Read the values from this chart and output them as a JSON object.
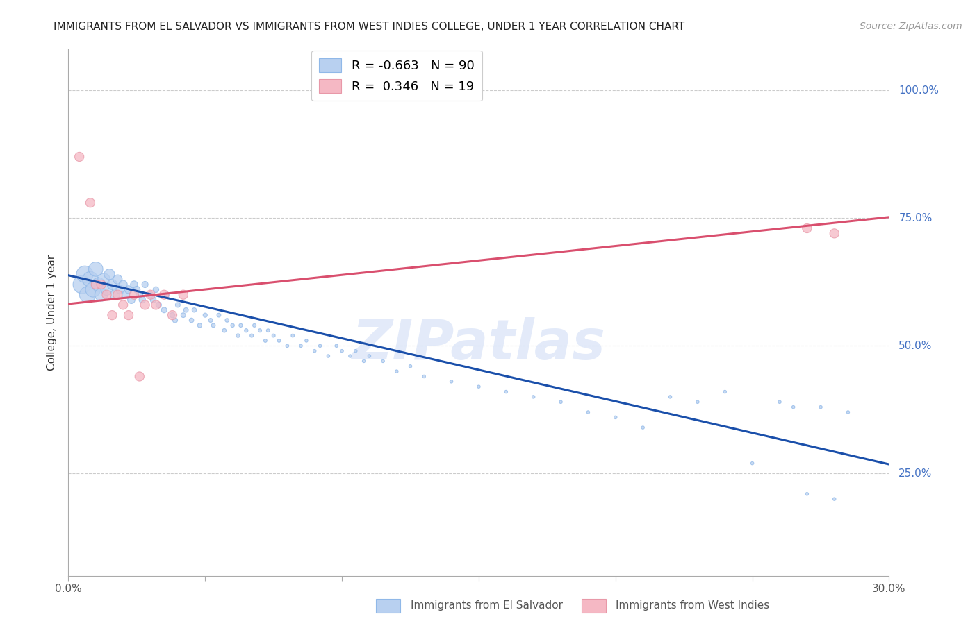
{
  "title": "IMMIGRANTS FROM EL SALVADOR VS IMMIGRANTS FROM WEST INDIES COLLEGE, UNDER 1 YEAR CORRELATION CHART",
  "source": "Source: ZipAtlas.com",
  "ylabel": "College, Under 1 year",
  "ytick_labels": [
    "100.0%",
    "75.0%",
    "50.0%",
    "25.0%"
  ],
  "ytick_values": [
    1.0,
    0.75,
    0.5,
    0.25
  ],
  "xlim": [
    0.0,
    0.3
  ],
  "ylim": [
    0.05,
    1.08
  ],
  "legend_entry1": "R = -0.663   N = 90",
  "legend_entry2": "R =  0.346   N = 19",
  "legend_color1": "#b8d0f0",
  "legend_color2": "#f5b8c4",
  "scatter_color1": "#b8d0f0",
  "scatter_color2": "#f5b8c4",
  "line_color1": "#1a4faa",
  "line_color2": "#d94f6e",
  "watermark": "ZIPatlas",
  "blue_x": [
    0.005,
    0.006,
    0.007,
    0.008,
    0.009,
    0.01,
    0.011,
    0.012,
    0.013,
    0.014,
    0.015,
    0.016,
    0.017,
    0.018,
    0.019,
    0.02,
    0.021,
    0.022,
    0.023,
    0.024,
    0.025,
    0.026,
    0.027,
    0.028,
    0.03,
    0.031,
    0.032,
    0.033,
    0.035,
    0.036,
    0.038,
    0.039,
    0.04,
    0.042,
    0.043,
    0.045,
    0.046,
    0.048,
    0.05,
    0.052,
    0.053,
    0.055,
    0.057,
    0.058,
    0.06,
    0.062,
    0.063,
    0.065,
    0.067,
    0.068,
    0.07,
    0.072,
    0.073,
    0.075,
    0.077,
    0.08,
    0.082,
    0.085,
    0.087,
    0.09,
    0.092,
    0.095,
    0.098,
    0.1,
    0.103,
    0.105,
    0.108,
    0.11,
    0.115,
    0.12,
    0.125,
    0.13,
    0.14,
    0.15,
    0.16,
    0.17,
    0.18,
    0.19,
    0.2,
    0.21,
    0.22,
    0.23,
    0.24,
    0.25,
    0.26,
    0.265,
    0.27,
    0.275,
    0.28,
    0.285
  ],
  "blue_y": [
    0.62,
    0.64,
    0.6,
    0.63,
    0.61,
    0.65,
    0.62,
    0.6,
    0.63,
    0.61,
    0.64,
    0.62,
    0.6,
    0.63,
    0.61,
    0.62,
    0.6,
    0.61,
    0.59,
    0.62,
    0.61,
    0.6,
    0.59,
    0.62,
    0.6,
    0.59,
    0.61,
    0.58,
    0.57,
    0.6,
    0.56,
    0.55,
    0.58,
    0.56,
    0.57,
    0.55,
    0.57,
    0.54,
    0.56,
    0.55,
    0.54,
    0.56,
    0.53,
    0.55,
    0.54,
    0.52,
    0.54,
    0.53,
    0.52,
    0.54,
    0.53,
    0.51,
    0.53,
    0.52,
    0.51,
    0.5,
    0.52,
    0.5,
    0.51,
    0.49,
    0.5,
    0.48,
    0.5,
    0.49,
    0.48,
    0.49,
    0.47,
    0.48,
    0.47,
    0.45,
    0.46,
    0.44,
    0.43,
    0.42,
    0.41,
    0.4,
    0.39,
    0.37,
    0.36,
    0.34,
    0.4,
    0.39,
    0.41,
    0.27,
    0.39,
    0.38,
    0.21,
    0.38,
    0.2,
    0.37
  ],
  "blue_sizes": [
    350,
    300,
    280,
    260,
    240,
    220,
    200,
    180,
    160,
    140,
    120,
    110,
    100,
    90,
    80,
    75,
    70,
    65,
    60,
    55,
    50,
    48,
    45,
    42,
    40,
    38,
    36,
    34,
    32,
    30,
    28,
    26,
    25,
    24,
    23,
    22,
    21,
    20,
    19,
    18,
    17,
    17,
    16,
    16,
    15,
    15,
    14,
    14,
    13,
    13,
    13,
    12,
    12,
    12,
    11,
    11,
    11,
    10,
    10,
    10,
    10,
    10,
    10,
    10,
    10,
    10,
    10,
    10,
    10,
    10,
    10,
    10,
    10,
    10,
    10,
    10,
    10,
    10,
    10,
    10,
    10,
    10,
    10,
    10,
    10,
    10,
    10,
    10,
    10,
    10
  ],
  "pink_x": [
    0.004,
    0.008,
    0.01,
    0.012,
    0.014,
    0.016,
    0.018,
    0.02,
    0.022,
    0.024,
    0.026,
    0.028,
    0.03,
    0.032,
    0.035,
    0.038,
    0.042,
    0.27,
    0.28
  ],
  "pink_y": [
    0.87,
    0.78,
    0.62,
    0.62,
    0.6,
    0.56,
    0.6,
    0.58,
    0.56,
    0.6,
    0.44,
    0.58,
    0.6,
    0.58,
    0.6,
    0.56,
    0.6,
    0.73,
    0.72
  ],
  "pink_sizes": [
    90,
    90,
    90,
    90,
    90,
    90,
    90,
    90,
    90,
    90,
    90,
    90,
    90,
    90,
    90,
    90,
    90,
    90,
    90
  ],
  "blue_line_x": [
    0.0,
    0.3
  ],
  "blue_line_y": [
    0.638,
    0.268
  ],
  "pink_line_x": [
    0.0,
    0.3
  ],
  "pink_line_y": [
    0.582,
    0.752
  ],
  "grid_color": "#cccccc",
  "background_color": "#ffffff",
  "title_fontsize": 11,
  "axis_label_fontsize": 11,
  "tick_fontsize": 11,
  "source_fontsize": 10,
  "watermark_text": "ZIPatlas"
}
